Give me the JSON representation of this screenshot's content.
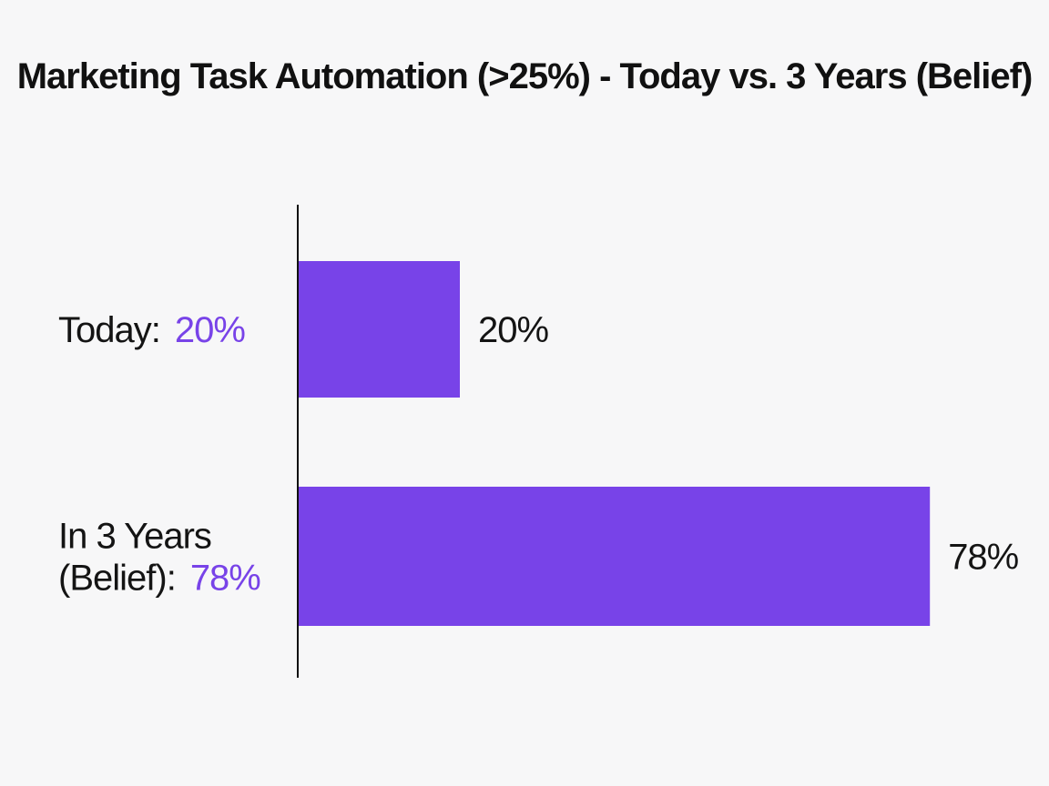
{
  "chart_data": {
    "type": "bar",
    "orientation": "horizontal",
    "title": "Marketing Task Automation (>25%) - Today vs. 3 Years (Belief)",
    "categories": [
      "Today",
      "In 3 Years (Belief)"
    ],
    "category_labels": [
      {
        "lines": [
          "Today:"
        ],
        "value_text": "20%"
      },
      {
        "lines": [
          "In 3 Years",
          "(Belief):"
        ],
        "value_text": "78%"
      }
    ],
    "values": [
      20,
      78
    ],
    "data_labels": [
      "20%",
      "78%"
    ],
    "xlim": [
      0,
      100
    ],
    "grid": false,
    "legend": "none",
    "bar_color": "#7843e8",
    "value_text_color": "#7843e8"
  }
}
